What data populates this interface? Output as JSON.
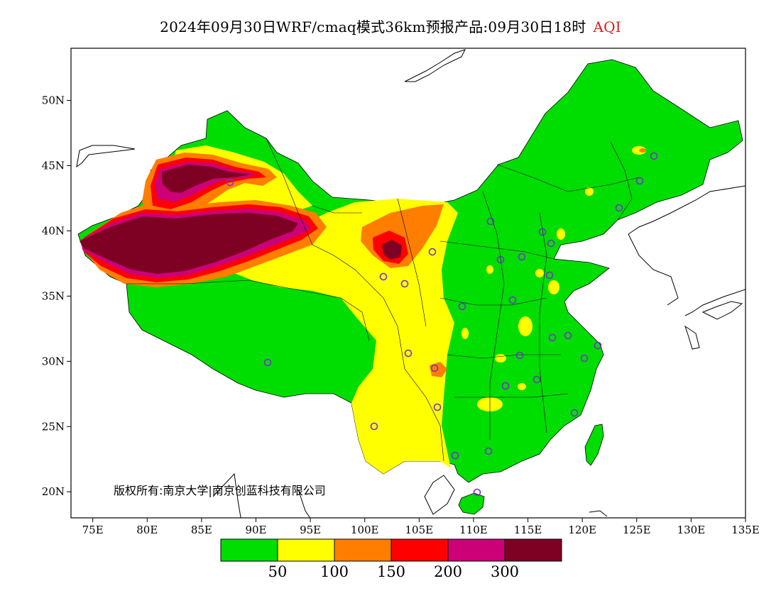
{
  "title": {
    "text": "2024年09月30日WRF/cmaq模式36km预报产品:09月30日18时",
    "variable": "AQI",
    "variable_color": "#e01b1b"
  },
  "map": {
    "lon_range": [
      73,
      135
    ],
    "lat_range": [
      18,
      54
    ],
    "lat_ticks": [
      "50N",
      "45N",
      "40N",
      "35N",
      "30N",
      "25N",
      "20N"
    ],
    "lon_ticks": [
      "75E",
      "80E",
      "85E",
      "90E",
      "95E",
      "100E",
      "105E",
      "110E",
      "115E",
      "120E",
      "125E",
      "130E",
      "135E"
    ],
    "copyright": "版权所有:南京大学|南京创蓝科技有限公司",
    "station_marker_color": "#7b2fd0"
  },
  "colorbar": {
    "colors": [
      "#00dd00",
      "#ffff00",
      "#ff7e00",
      "#ff0000",
      "#cc0077",
      "#7e0023"
    ],
    "labels": [
      "50",
      "100",
      "150",
      "200",
      "300"
    ]
  }
}
